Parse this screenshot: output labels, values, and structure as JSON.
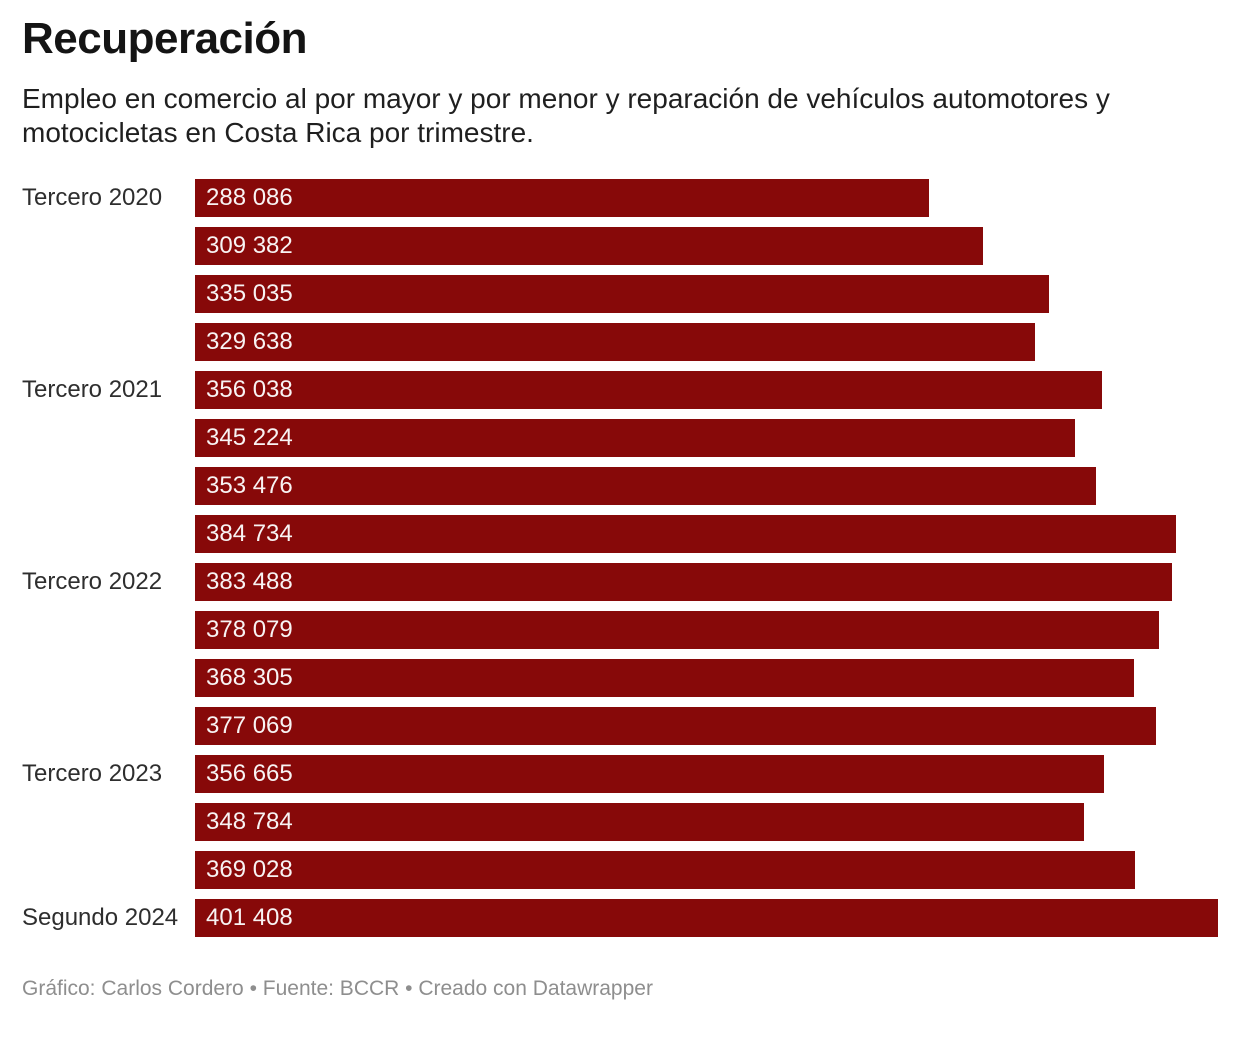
{
  "header": {
    "title": "Recuperación",
    "subtitle": "Empleo en comercio al por mayor y por menor y reparación de vehículos automotores y motocicletas en Costa Rica por trimestre."
  },
  "footer": {
    "text": "Gráfico: Carlos Cordero • Fuente: BCCR • Creado con Datawrapper"
  },
  "colors": {
    "bar_fill": "#870909",
    "value_label_text": "#f8f3f3",
    "title_text": "#141414",
    "footer_text": "#8e8e8e"
  },
  "chart_data": {
    "type": "bar",
    "orientation": "horizontal",
    "title": "Recuperación",
    "subtitle": "Empleo en comercio al por mayor y por menor y reparación de vehículos automotores y motocicletas en Costa Rica por trimestre.",
    "legend": "none",
    "grid": false,
    "value_axis_shown": false,
    "max_value": 401408,
    "bar_color": "#870909",
    "categories": [
      "Tercero 2020",
      "",
      "",
      "",
      "Tercero 2021",
      "",
      "",
      "",
      "Tercero 2022",
      "",
      "",
      "",
      "Tercero 2023",
      "",
      "",
      "Segundo 2024"
    ],
    "values": [
      288086,
      309382,
      335035,
      329638,
      356038,
      345224,
      353476,
      384734,
      383488,
      378079,
      368305,
      377069,
      356665,
      348784,
      369028,
      401408
    ],
    "value_labels": [
      "288 086",
      "309 382",
      "335 035",
      "329 638",
      "356 038",
      "345 224",
      "353 476",
      "384 734",
      "383 488",
      "378 079",
      "368 305",
      "377 069",
      "356 665",
      "348 784",
      "369 028",
      "401 408"
    ]
  }
}
